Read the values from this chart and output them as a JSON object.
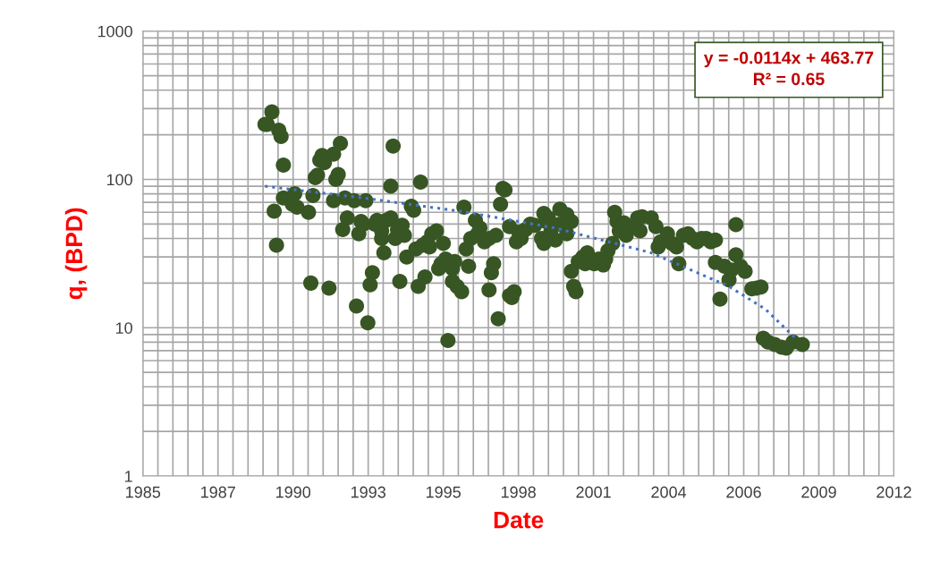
{
  "chart_data": {
    "type": "scatter",
    "xlabel": "Date",
    "ylabel": "q, (BPD)",
    "log": "y",
    "grid": true,
    "marker": "circle",
    "xlim": [
      "1985-01-01",
      "2012-05-19"
    ],
    "xticks": [
      {
        "value": "1985-01-01",
        "label": "1985"
      },
      {
        "value": "1987-09-28",
        "label": "1987"
      },
      {
        "value": "1990-06-24",
        "label": "1990"
      },
      {
        "value": "1993-03-20",
        "label": "1993"
      },
      {
        "value": "1995-12-15",
        "label": "1995"
      },
      {
        "value": "1998-09-10",
        "label": "1998"
      },
      {
        "value": "2001-06-06",
        "label": "2001"
      },
      {
        "value": "2004-03-02",
        "label": "2004"
      },
      {
        "value": "2006-11-27",
        "label": "2006"
      },
      {
        "value": "2009-08-23",
        "label": "2009"
      },
      {
        "value": "2012-05-19",
        "label": "2012"
      }
    ],
    "ylim": [
      1,
      1000
    ],
    "yticks": [
      1,
      10,
      100,
      1000
    ],
    "annotations": [
      "y = -0.0114x + 463.77",
      "R² = 0.65"
    ],
    "series": [
      {
        "color": "#375623",
        "x": [
          "1989-06",
          "1989-07",
          "1989-09",
          "1989-10",
          "1989-11",
          "1989-12",
          "1990-01",
          "1990-02",
          "1990-02",
          "1990-06",
          "1990-07",
          "1990-08",
          "1991-01",
          "1991-02",
          "1991-03",
          "1991-04",
          "1991-05",
          "1991-06",
          "1991-07",
          "1991-08",
          "1991-10",
          "1991-12",
          "1991-12",
          "1992-01",
          "1992-02",
          "1992-03",
          "1992-04",
          "1992-05",
          "1992-06",
          "1992-09",
          "1992-10",
          "1992-11",
          "1992-12",
          "1993-01",
          "1993-02",
          "1993-03",
          "1993-04",
          "1993-05",
          "1993-06",
          "1993-07",
          "1993-09",
          "1993-09",
          "1993-10",
          "1993-11",
          "1994-01",
          "1994-01",
          "1994-02",
          "1994-03",
          "1994-04",
          "1994-05",
          "1994-06",
          "1994-07",
          "1994-08",
          "1994-10",
          "1994-11",
          "1994-12",
          "1995-01",
          "1995-02",
          "1995-03",
          "1995-04",
          "1995-05",
          "1995-06",
          "1995-07",
          "1995-09",
          "1995-10",
          "1995-11",
          "1995-12",
          "1996-01",
          "1996-02",
          "1996-04",
          "1996-04",
          "1996-05",
          "1996-06",
          "1996-08",
          "1996-09",
          "1996-10",
          "1996-11",
          "1996-12",
          "1997-02",
          "1997-03",
          "1997-04",
          "1997-06",
          "1997-08",
          "1997-08",
          "1997-09",
          "1997-10",
          "1997-11",
          "1997-12",
          "1998-01",
          "1998-02",
          "1998-03",
          "1998-05",
          "1998-05",
          "1998-06",
          "1998-07",
          "1998-08",
          "1998-09",
          "1998-10",
          "1998-12",
          "1999-02",
          "1999-04",
          "1999-07",
          "1999-08",
          "1999-08",
          "1999-09",
          "1999-10",
          "1999-11",
          "2000-01",
          "2000-03",
          "2000-03",
          "2000-06",
          "2000-06",
          "2000-08",
          "2000-08",
          "2000-09",
          "2000-10",
          "2000-11",
          "2001-01",
          "2001-02",
          "2001-03",
          "2001-06",
          "2001-08",
          "2001-10",
          "2001-11",
          "2001-12",
          "2002-02",
          "2002-03",
          "2002-04",
          "2002-05",
          "2002-07",
          "2002-08",
          "2002-10",
          "2003-01",
          "2003-02",
          "2003-03",
          "2003-07",
          "2003-09",
          "2003-10",
          "2003-11",
          "2004-02",
          "2004-04",
          "2004-07",
          "2004-06",
          "2004-09",
          "2004-11",
          "2005-01",
          "2005-03",
          "2005-05",
          "2005-07",
          "2005-09",
          "2005-11",
          "2005-11",
          "2006-01",
          "2006-03",
          "2006-05",
          "2006-06",
          "2006-08",
          "2006-08",
          "2006-10",
          "2006-12",
          "2007-03",
          "2007-05",
          "2007-07",
          "2007-08",
          "2007-10",
          "2008-01",
          "2008-04",
          "2008-06",
          "2008-09",
          "2009-01"
        ],
        "values": [
          235,
          235,
          285,
          61,
          36,
          215,
          195,
          125,
          75,
          68,
          80,
          65,
          60,
          20,
          78,
          103,
          107,
          135,
          145,
          130,
          18.5,
          148,
          72,
          100,
          108,
          175,
          46,
          75,
          55,
          72,
          14,
          43,
          52,
          50,
          72,
          10.8,
          19.5,
          23.5,
          50,
          53,
          45,
          40,
          32,
          53,
          55,
          90,
          168,
          40,
          46,
          20.5,
          49,
          42,
          30,
          66,
          62,
          34,
          19,
          96,
          36,
          22,
          38,
          35,
          43,
          45,
          25,
          27,
          37,
          29,
          8.2,
          25,
          20.5,
          28,
          19,
          17.5,
          65,
          34,
          26,
          40,
          53,
          43,
          47,
          38,
          40,
          18,
          23.5,
          27,
          42,
          11.5,
          68,
          87,
          85,
          48,
          16.5,
          16,
          17.5,
          38,
          44,
          40,
          46,
          50,
          49,
          40,
          37,
          59,
          52,
          55,
          44,
          39,
          63,
          50,
          58,
          43,
          52,
          24,
          19,
          17.5,
          28,
          30,
          27,
          32,
          27,
          29,
          26.5,
          29,
          33,
          37,
          60,
          52,
          45,
          51,
          42,
          48,
          55,
          45,
          56,
          55,
          48,
          35,
          38,
          43,
          37,
          27,
          35,
          42,
          43,
          40,
          38,
          40,
          40,
          38,
          39,
          27.6,
          15.6,
          26,
          21,
          24.5,
          31,
          49.6,
          26,
          24,
          18.3,
          18.5,
          18.8,
          8.5,
          8.0,
          7.7,
          7.4,
          7.3,
          8.0,
          7.7
        ]
      },
      {
        "type": "line",
        "color": "#4472c4",
        "line_style": "dotted",
        "marker": "none",
        "x": [
          "1989-06",
          "1993-01",
          "1996-09",
          "2000-01",
          "2003-07",
          "2006-05",
          "2007-09",
          "2008-10"
        ],
        "values": [
          90,
          75,
          60.5,
          47,
          32,
          19,
          13.3,
          8.5
        ]
      }
    ]
  }
}
